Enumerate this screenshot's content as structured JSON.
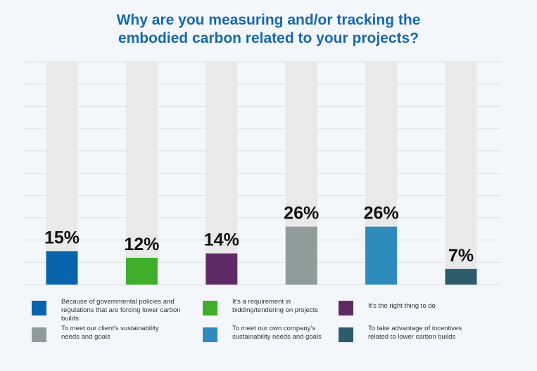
{
  "chart_data": {
    "type": "bar",
    "title": "Why are you measuring and/or tracking the embodied carbon related to your projects?",
    "title_lines": [
      "Why are you measuring and/or tracking the",
      "embodied carbon related to your projects?"
    ],
    "categories": [
      "Because of governmental policies and regulations that are forcing lower carbon builds",
      "It's a requirement in bidding/tendering on projects",
      "It's the right thing to do",
      "To meet our client's sustainability needs and goals",
      "To meet our own company's sustainability needs and goals",
      "To take advantage of incentives related to lower carbon builds"
    ],
    "values": [
      15,
      12,
      14,
      26,
      26,
      7
    ],
    "data_labels": [
      "15%",
      "12%",
      "14%",
      "26%",
      "26%",
      "7%"
    ],
    "colors": [
      "#0a63ad",
      "#3fae2a",
      "#5f2b67",
      "#8f9c9a",
      "#2f8bbd",
      "#2c5b6b"
    ],
    "background_bar_color": "#e9e9e9",
    "ylim": [
      0,
      100
    ],
    "grid": true,
    "legend_position": "bottom",
    "xlabel": "",
    "ylabel": ""
  },
  "legend": {
    "items": [
      {
        "lines": [
          "Because of governmental policies and",
          "regulations that are forcing lower carbon builds"
        ],
        "color": "#0a63ad"
      },
      {
        "lines": [
          "It's a requirement in",
          "bidding/tendering on projects"
        ],
        "color": "#3fae2a"
      },
      {
        "lines": [
          "It's the right thing to do"
        ],
        "color": "#5f2b67"
      },
      {
        "lines": [
          "To meet our client's sustainability",
          "needs and goals"
        ],
        "color": "#8f9c9a"
      },
      {
        "lines": [
          "To meet our own company's",
          "sustainability needs and goals"
        ],
        "color": "#2f8bbd"
      },
      {
        "lines": [
          "To take advantage of incentives",
          "related to lower carbon builds"
        ],
        "color": "#2c5b6b"
      }
    ]
  }
}
